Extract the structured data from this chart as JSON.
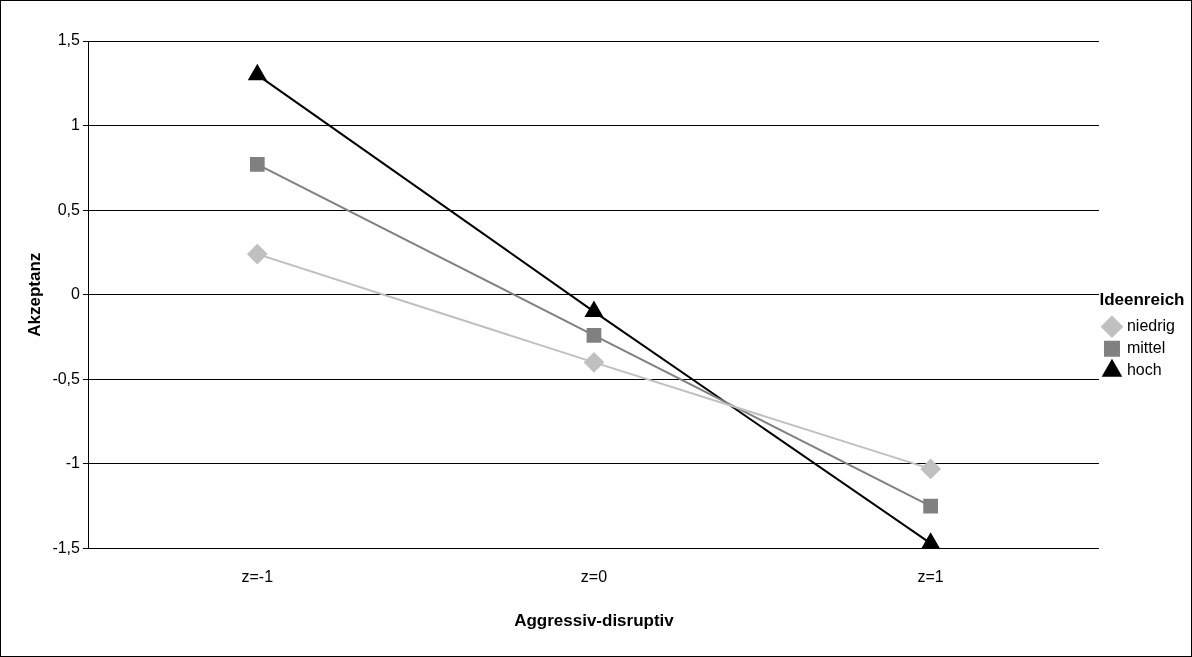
{
  "chart_data": {
    "type": "line",
    "xlabel": "Aggressiv-disruptiv",
    "ylabel": "Akzeptanz",
    "legend_title": "Ideenreich",
    "categories": [
      "z=-1",
      "z=0",
      "z=1"
    ],
    "series": [
      {
        "name": "niedrig",
        "color": "#c0c0c0",
        "marker": "diamond",
        "values": [
          0.24,
          -0.4,
          -1.03
        ]
      },
      {
        "name": "mittel",
        "color": "#808080",
        "marker": "square",
        "values": [
          0.77,
          -0.24,
          -1.25
        ]
      },
      {
        "name": "hoch",
        "color": "#000000",
        "marker": "triangle",
        "values": [
          1.3,
          -0.1,
          -1.47
        ]
      }
    ],
    "ylim": [
      -1.5,
      1.5
    ],
    "yticks": [
      {
        "value": -1.5,
        "label": "-1,5"
      },
      {
        "value": -1,
        "label": "-1"
      },
      {
        "value": -0.5,
        "label": "-0,5"
      },
      {
        "value": 0,
        "label": "0"
      },
      {
        "value": 0.5,
        "label": "0,5"
      },
      {
        "value": 1,
        "label": "1"
      },
      {
        "value": 1.5,
        "label": "1,5"
      }
    ],
    "grid": "y",
    "legend": "right",
    "line_style": "solid"
  }
}
